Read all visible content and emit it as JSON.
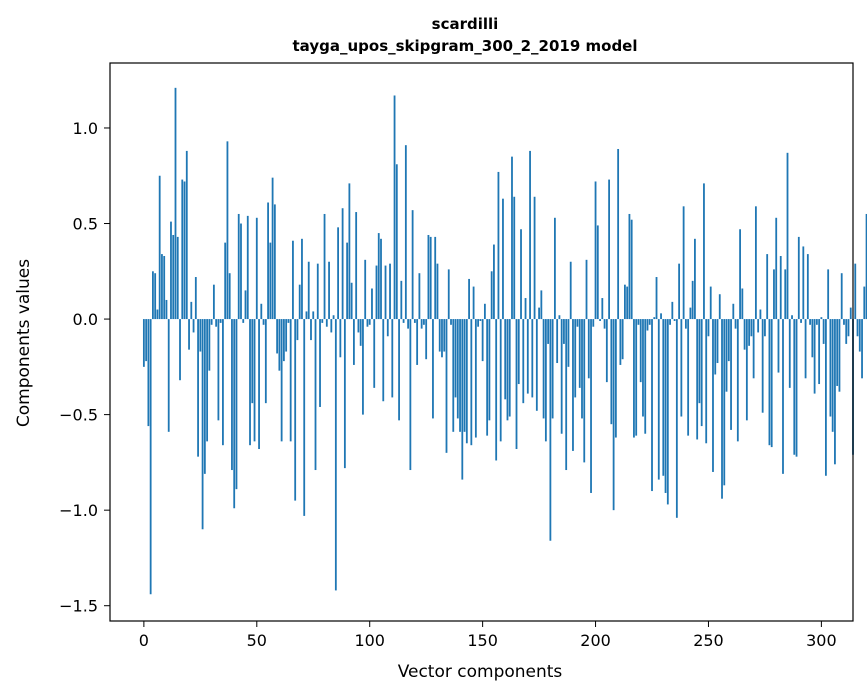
{
  "chart_data": {
    "type": "bar",
    "title": "scardilli",
    "subtitle": "tayga_upos_skipgram_300_2_2019 model",
    "xlabel": "Vector components",
    "ylabel": "Components values",
    "xlim": [
      -15,
      314
    ],
    "ylim": [
      -1.58,
      1.34
    ],
    "xticks": [
      0,
      50,
      100,
      150,
      200,
      250,
      300
    ],
    "xtick_labels": [
      "0",
      "50",
      "100",
      "150",
      "200",
      "250",
      "300"
    ],
    "yticks": [
      -1.5,
      -1.0,
      -0.5,
      0.0,
      0.5,
      1.0
    ],
    "ytick_labels": [
      "−1.5",
      "−1.0",
      "−0.5",
      "0.0",
      "0.5",
      "1.0"
    ],
    "bar_color": "#1f77b4",
    "grid": false,
    "series": [
      {
        "name": "scardilli",
        "values": [
          -0.25,
          -0.22,
          -0.56,
          -1.44,
          0.25,
          0.24,
          0.05,
          0.75,
          0.34,
          0.33,
          0.1,
          -0.59,
          0.51,
          0.44,
          1.21,
          0.43,
          -0.32,
          0.73,
          0.72,
          0.88,
          -0.16,
          0.09,
          -0.07,
          0.22,
          -0.72,
          -0.17,
          -1.1,
          -0.81,
          -0.64,
          -0.27,
          -0.03,
          0.18,
          -0.04,
          -0.53,
          -0.02,
          -0.66,
          0.4,
          0.93,
          0.24,
          -0.79,
          -0.99,
          -0.89,
          0.55,
          0.5,
          -0.02,
          0.15,
          0.54,
          -0.66,
          -0.44,
          -0.64,
          0.53,
          -0.68,
          0.08,
          -0.03,
          -0.44,
          0.61,
          0.4,
          0.74,
          0.6,
          -0.18,
          -0.27,
          -0.64,
          -0.22,
          -0.17,
          -0.02,
          -0.64,
          0.41,
          -0.95,
          -0.11,
          0.18,
          0.42,
          -1.03,
          0.04,
          0.3,
          -0.11,
          0.04,
          -0.79,
          0.29,
          -0.46,
          -0.02,
          0.55,
          -0.04,
          0.3,
          -0.07,
          0.02,
          -1.42,
          0.48,
          -0.2,
          0.58,
          -0.78,
          0.4,
          0.71,
          0.19,
          -0.24,
          0.56,
          -0.07,
          -0.14,
          -0.5,
          0.31,
          -0.04,
          -0.03,
          0.16,
          -0.36,
          0.28,
          0.45,
          0.42,
          -0.43,
          0.28,
          -0.09,
          0.29,
          -0.41,
          1.17,
          0.81,
          -0.53,
          0.2,
          -0.02,
          0.91,
          -0.05,
          -0.79,
          0.57,
          -0.02,
          -0.24,
          0.24,
          -0.05,
          -0.03,
          -0.21,
          0.44,
          0.43,
          -0.52,
          0.43,
          0.29,
          -0.17,
          -0.2,
          -0.17,
          -0.7,
          0.26,
          -0.03,
          -0.59,
          -0.41,
          -0.52,
          -0.59,
          -0.84,
          -0.59,
          -0.65,
          0.21,
          -0.66,
          0.17,
          -0.62,
          -0.04,
          -0.01,
          -0.22,
          0.08,
          -0.61,
          -0.53,
          0.25,
          0.39,
          -0.74,
          0.77,
          -0.64,
          0.63,
          -0.42,
          -0.53,
          -0.51,
          0.85,
          0.64,
          -0.68,
          -0.34,
          0.47,
          -0.44,
          0.11,
          -0.39,
          0.88,
          -0.41,
          0.64,
          -0.48,
          0.06,
          0.15,
          -0.52,
          -0.64,
          -0.13,
          -1.16,
          -0.52,
          0.53,
          -0.23,
          0.02,
          -0.6,
          -0.13,
          -0.79,
          -0.25,
          0.3,
          -0.69,
          -0.41,
          -0.04,
          -0.36,
          -0.52,
          -0.75,
          0.31,
          -0.31,
          -0.91,
          -0.04,
          0.72,
          0.49,
          -0.01,
          0.11,
          -0.05,
          -0.33,
          0.73,
          -0.55,
          -1.0,
          -0.62,
          0.89,
          -0.24,
          -0.21,
          0.18,
          0.17,
          0.55,
          0.52,
          -0.62,
          -0.61,
          -0.03,
          -0.33,
          -0.51,
          -0.6,
          -0.06,
          -0.03,
          -0.9,
          0.01,
          0.22,
          -0.84,
          0.03,
          -0.82,
          -0.91,
          -0.97,
          -0.03,
          0.09,
          -0.01,
          -1.04,
          0.29,
          -0.51,
          0.59,
          -0.05,
          -0.61,
          0.06,
          0.2,
          0.42,
          -0.63,
          -0.44,
          -0.56,
          0.71,
          -0.65,
          -0.09,
          0.17,
          -0.8,
          -0.29,
          -0.23,
          0.13,
          -0.94,
          -0.87,
          -0.38,
          -0.22,
          -0.58,
          0.08,
          -0.05,
          -0.64,
          0.47,
          0.16,
          -0.16,
          -0.53,
          -0.14,
          -0.09,
          -0.31,
          0.59,
          -0.07,
          0.05,
          -0.49,
          -0.09,
          0.34,
          -0.66,
          -0.67,
          0.26,
          0.53,
          -0.28,
          0.33,
          -0.81,
          0.26,
          0.87,
          -0.36,
          0.02,
          -0.71,
          -0.72,
          0.43,
          -0.02,
          0.38,
          -0.31,
          0.34,
          -0.03,
          -0.2,
          -0.39,
          -0.03,
          -0.34,
          0.01,
          -0.13,
          -0.82,
          0.26,
          -0.51,
          -0.59,
          -0.76,
          -0.35,
          -0.38,
          0.24,
          -0.03,
          -0.13,
          -0.09,
          0.06,
          -0.71,
          0.29,
          -0.09,
          -0.17,
          -0.31,
          0.17,
          0.55,
          0.28,
          -1.04,
          0.09,
          -0.12,
          0.16,
          -0.72,
          0.46,
          -0.88,
          -0.01,
          -0.63,
          0.13,
          -0.38,
          -0.1,
          -0.11,
          0.58,
          0.58,
          -0.03,
          -0.25,
          0.33,
          0.14,
          0.64,
          -0.68,
          -0.38,
          -0.19,
          0.13,
          -0.1,
          0.1,
          -0.33,
          0.21,
          0.09,
          -0.03,
          -0.59,
          0.16,
          -0.51,
          -0.68,
          -0.67,
          -0.58,
          0.44,
          -0.76,
          -0.09,
          -0.24,
          -0.8,
          -0.57,
          0.37,
          -0.07,
          -0.14,
          -0.35,
          0.44,
          -0.19,
          0.15,
          -0.02,
          0.08,
          -0.03,
          -0.07,
          -0.12,
          0.11,
          -0.81,
          -0.15,
          0.29,
          0.15,
          -0.79,
          0.03,
          0.35,
          -0.18,
          -0.15,
          -0.25,
          0.3,
          0.18,
          -0.27,
          -0.38,
          0.34,
          0.05,
          -0.44,
          0.15,
          0.23,
          0.38,
          -0.09,
          -0.2,
          -0.09,
          -0.03,
          -0.03,
          -0.02,
          -0.09,
          -0.3,
          0.15,
          -0.04,
          0.23,
          -0.09,
          0.13,
          -0.06,
          0.14,
          -0.63,
          -0.1,
          0.43,
          -0.29,
          -0.02,
          0.33,
          -0.17,
          0.12,
          -0.18,
          0.35,
          -0.41,
          0.39,
          0.2,
          -0.05,
          0.24,
          -0.06,
          -0.75,
          -0.34,
          -0.44,
          0.41,
          0.18,
          0.28,
          0.15,
          -0.17,
          -0.23,
          -0.42,
          -0.11,
          0.58,
          -0.06,
          -0.78,
          0.58,
          0.86,
          -0.29,
          0.25,
          0.2,
          -0.2,
          0.06,
          -0.37,
          0.4,
          -0.73,
          -0.65,
          0.29,
          -0.79
        ]
      }
    ]
  }
}
